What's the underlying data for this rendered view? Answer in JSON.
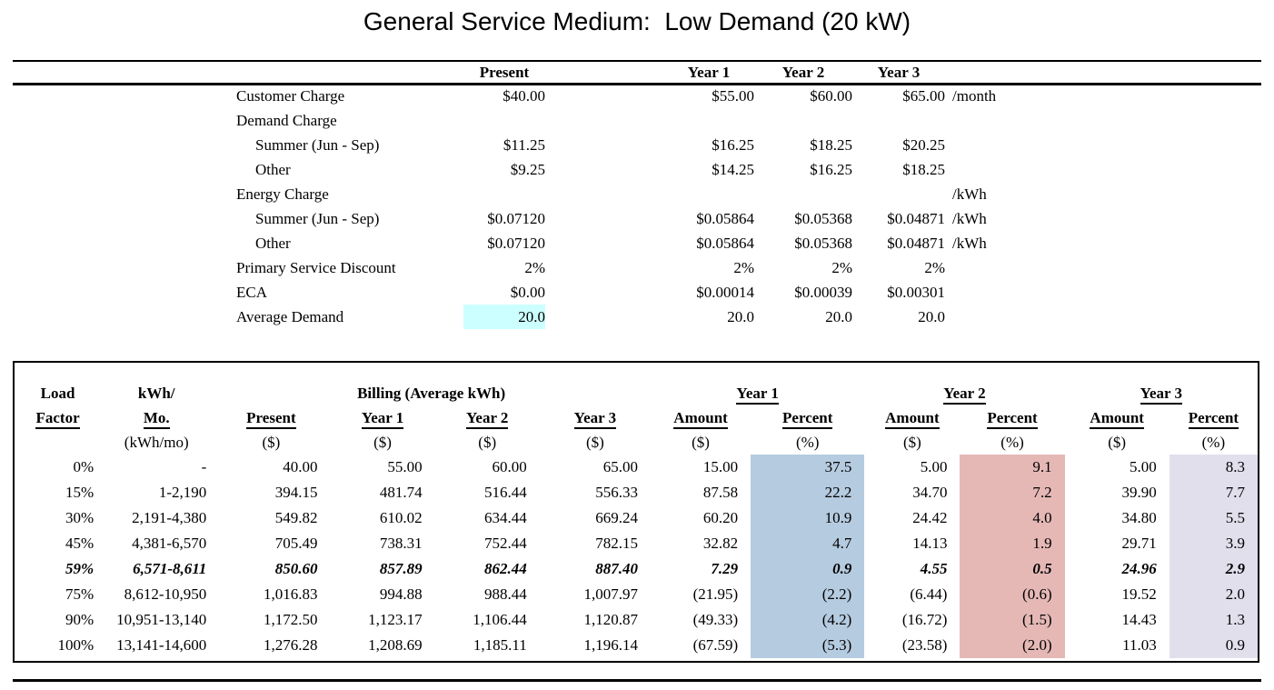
{
  "page_title": "General Service Medium:  Low Demand (20 kW)",
  "rate_schedule": {
    "col_headers": [
      "Present",
      "Year 1",
      "Year 2",
      "Year 3"
    ],
    "rows": [
      {
        "label": "Customer Charge",
        "indent": 0,
        "values": [
          "$40.00",
          "$55.00",
          "$60.00",
          "$65.00"
        ],
        "unit": "/month",
        "highlight_present": false
      },
      {
        "label": "Demand Charge",
        "indent": 0,
        "values": [
          "",
          "",
          "",
          ""
        ],
        "unit": "",
        "highlight_present": false
      },
      {
        "label": "Summer (Jun - Sep)",
        "indent": 1,
        "values": [
          "$11.25",
          "$16.25",
          "$18.25",
          "$20.25"
        ],
        "unit": "",
        "highlight_present": false
      },
      {
        "label": "Other",
        "indent": 1,
        "values": [
          "$9.25",
          "$14.25",
          "$16.25",
          "$18.25"
        ],
        "unit": "",
        "highlight_present": false
      },
      {
        "label": "Energy Charge",
        "indent": 0,
        "values": [
          "",
          "",
          "",
          ""
        ],
        "unit": "/kWh",
        "highlight_present": false
      },
      {
        "label": "Summer (Jun - Sep)",
        "indent": 1,
        "values": [
          "$0.07120",
          "$0.05864",
          "$0.05368",
          "$0.04871"
        ],
        "unit": "/kWh",
        "highlight_present": false
      },
      {
        "label": "Other",
        "indent": 1,
        "values": [
          "$0.07120",
          "$0.05864",
          "$0.05368",
          "$0.04871"
        ],
        "unit": "/kWh",
        "highlight_present": false
      },
      {
        "label": "Primary Service Discount",
        "indent": 0,
        "values": [
          "2%",
          "2%",
          "2%",
          "2%"
        ],
        "unit": "",
        "highlight_present": false
      },
      {
        "label": "ECA",
        "indent": 0,
        "values": [
          "$0.00",
          "$0.00014",
          "$0.00039",
          "$0.00301"
        ],
        "unit": "",
        "highlight_present": false
      },
      {
        "label": "Average Demand",
        "indent": 0,
        "values": [
          "20.0",
          "20.0",
          "20.0",
          "20.0"
        ],
        "unit": "",
        "highlight_present": true
      }
    ]
  },
  "billing_table": {
    "title_row": {
      "load": "Load",
      "kwh": "kWh/",
      "billing_group": "Billing (Average kWh)",
      "year1_group": "Year 1",
      "year2_group": "Year 2",
      "year3_group": "Year 3"
    },
    "sub_headers": [
      "Factor",
      "Mo.",
      "Present",
      "Year 1",
      "Year 2",
      "Year 3",
      "Amount",
      "Percent",
      "Amount",
      "Percent",
      "Amount",
      "Percent"
    ],
    "unit_row": [
      "",
      "(kWh/mo)",
      "($)",
      "($)",
      "($)",
      "($)",
      "($)",
      "(%)",
      "($)",
      "(%)",
      "($)",
      "(%)"
    ],
    "rows": [
      {
        "cells": [
          "0%",
          "-",
          "40.00",
          "55.00",
          "60.00",
          "65.00",
          "15.00",
          "37.5",
          "5.00",
          "9.1",
          "5.00",
          "8.3"
        ],
        "emphasis": false
      },
      {
        "cells": [
          "15%",
          "1-2,190",
          "394.15",
          "481.74",
          "516.44",
          "556.33",
          "87.58",
          "22.2",
          "34.70",
          "7.2",
          "39.90",
          "7.7"
        ],
        "emphasis": false
      },
      {
        "cells": [
          "30%",
          "2,191-4,380",
          "549.82",
          "610.02",
          "634.44",
          "669.24",
          "60.20",
          "10.9",
          "24.42",
          "4.0",
          "34.80",
          "5.5"
        ],
        "emphasis": false
      },
      {
        "cells": [
          "45%",
          "4,381-6,570",
          "705.49",
          "738.31",
          "752.44",
          "782.15",
          "32.82",
          "4.7",
          "14.13",
          "1.9",
          "29.71",
          "3.9"
        ],
        "emphasis": false
      },
      {
        "cells": [
          "59%",
          "6,571-8,611",
          "850.60",
          "857.89",
          "862.44",
          "887.40",
          "7.29",
          "0.9",
          "4.55",
          "0.5",
          "24.96",
          "2.9"
        ],
        "emphasis": true
      },
      {
        "cells": [
          "75%",
          "8,612-10,950",
          "1,016.83",
          "994.88",
          "988.44",
          "1,007.97",
          "(21.95)",
          "(2.2)",
          "(6.44)",
          "(0.6)",
          "19.52",
          "2.0"
        ],
        "emphasis": false
      },
      {
        "cells": [
          "90%",
          "10,951-13,140",
          "1,172.50",
          "1,123.17",
          "1,106.44",
          "1,120.87",
          "(49.33)",
          "(4.2)",
          "(16.72)",
          "(1.5)",
          "14.43",
          "1.3"
        ],
        "emphasis": false
      },
      {
        "cells": [
          "100%",
          "13,141-14,600",
          "1,276.28",
          "1,208.69",
          "1,185.11",
          "1,196.14",
          "(67.59)",
          "(5.3)",
          "(23.58)",
          "(2.0)",
          "11.03",
          "0.9"
        ],
        "emphasis": false
      }
    ]
  },
  "colors": {
    "year1_percent_bg": "#b5cbe0",
    "year2_percent_bg": "#e5b8b6",
    "year3_percent_bg": "#e2dfed",
    "highlight_cell_bg": "#ccffff"
  }
}
